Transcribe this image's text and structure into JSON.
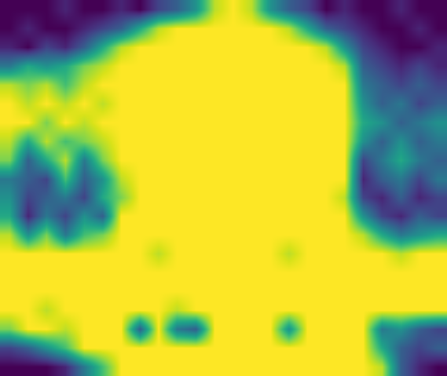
{
  "chart_data": {
    "type": "heatmap",
    "tick_labels": false,
    "grid": false,
    "color": "viridis",
    "zlim": [
      0,
      1
    ],
    "cells": [
      [
        0,
        0,
        0,
        0.1,
        0,
        0,
        0.1,
        0,
        0.2,
        0.3,
        0.5,
        0.9,
        1,
        0.9,
        0.5,
        0.3,
        0.2,
        0,
        0.1,
        0,
        0,
        0.1,
        0,
        0
      ],
      [
        0,
        0.1,
        0,
        0,
        0.1,
        0.2,
        0.3,
        0.6,
        0.9,
        1,
        1,
        1,
        1,
        1,
        1,
        0.9,
        0.6,
        0.3,
        0.2,
        0.1,
        0,
        0,
        0.1,
        0
      ],
      [
        0.1,
        0,
        0.2,
        0.1,
        0.3,
        0.6,
        0.9,
        1,
        1,
        1,
        1,
        1,
        1,
        1,
        1,
        1,
        1,
        0.9,
        0.5,
        0.2,
        0.1,
        0,
        0,
        0.1
      ],
      [
        0.4,
        0.6,
        0.5,
        0.6,
        0.8,
        0.9,
        1,
        1,
        1,
        1,
        1,
        1,
        1,
        1,
        1,
        1,
        1,
        1,
        0.9,
        0.3,
        0.2,
        0.1,
        0.2,
        0.1
      ],
      [
        0.9,
        0.8,
        0.9,
        0.7,
        0.9,
        1,
        1,
        1,
        1,
        1,
        1,
        1,
        1,
        1,
        1,
        1,
        1,
        1,
        1,
        0.4,
        0.3,
        0.2,
        0.3,
        0.2
      ],
      [
        1,
        0.9,
        1,
        0.9,
        1,
        0.9,
        1,
        1,
        1,
        1,
        1,
        1,
        1,
        1,
        1,
        1,
        1,
        1,
        1,
        0.5,
        0.3,
        0.4,
        0.2,
        0.3
      ],
      [
        1,
        1,
        0.8,
        1,
        0.9,
        1,
        1,
        1,
        1,
        1,
        1,
        1,
        1,
        1,
        1,
        1,
        1,
        1,
        1,
        0.6,
        0.5,
        0.3,
        0.4,
        0.5
      ],
      [
        0.9,
        0.6,
        0.9,
        0.7,
        0.8,
        0.9,
        1,
        1,
        1,
        1,
        1,
        1,
        1,
        1,
        1,
        1,
        1,
        1,
        1,
        0.5,
        0.3,
        0.5,
        0.3,
        0.4
      ],
      [
        0.8,
        0.3,
        0.6,
        0.9,
        0.4,
        0.8,
        1,
        1,
        1,
        1,
        1,
        1,
        1,
        1,
        1,
        1,
        1,
        1,
        1,
        0.2,
        0.4,
        0.6,
        0.4,
        0.3
      ],
      [
        0.4,
        0.3,
        0.2,
        0.7,
        0.3,
        0.5,
        0.9,
        1,
        1,
        1,
        1,
        1,
        1,
        1,
        1,
        1,
        1,
        1,
        1,
        0.1,
        0.3,
        0.4,
        0.2,
        0.4
      ],
      [
        0.5,
        0.2,
        0.3,
        0.4,
        0.2,
        0.6,
        0.8,
        1,
        1,
        1,
        1,
        1,
        1,
        1,
        1,
        1,
        1,
        1,
        0.9,
        0.2,
        0.1,
        0.3,
        0.1,
        0.2
      ],
      [
        0.6,
        0.1,
        0.4,
        0.2,
        0.5,
        0.3,
        1,
        1,
        1,
        1,
        1,
        1,
        1,
        1,
        1,
        1,
        1,
        1,
        1,
        0.5,
        0.2,
        0.1,
        0.3,
        0.2
      ],
      [
        0.9,
        0.5,
        0.8,
        0.4,
        0.7,
        0.8,
        1,
        1,
        1,
        1,
        1,
        1,
        1,
        1,
        1,
        1,
        1,
        1,
        1,
        0.9,
        0.6,
        0.4,
        0.5,
        0.6
      ],
      [
        1,
        1,
        1,
        1,
        1,
        1,
        1,
        1,
        0.9,
        1,
        1,
        1,
        1,
        1,
        1,
        0.9,
        1,
        1,
        1,
        1,
        1,
        0.9,
        1,
        1
      ],
      [
        1,
        1,
        1,
        1,
        1,
        1,
        1,
        1,
        1,
        1,
        1,
        1,
        1,
        1,
        1,
        1,
        1,
        1,
        1,
        1,
        1,
        1,
        1,
        1
      ],
      [
        1,
        1,
        1,
        1,
        1,
        1,
        1,
        1,
        1,
        1,
        1,
        1,
        1,
        1,
        1,
        1,
        1,
        1,
        1,
        1,
        1,
        1,
        1,
        1
      ],
      [
        1,
        1,
        0.9,
        1,
        1,
        1,
        1,
        1,
        1,
        0.9,
        1,
        1,
        1,
        1,
        1,
        1,
        1,
        1,
        1,
        1,
        1,
        1,
        1,
        1
      ],
      [
        0.8,
        1,
        1,
        0.9,
        1,
        1,
        1,
        0.3,
        1,
        0.4,
        0.3,
        1,
        1,
        1,
        1,
        0.5,
        1,
        1,
        1,
        1,
        0.4,
        0.5,
        0.3,
        0.2
      ],
      [
        0.2,
        0.3,
        0.5,
        0.7,
        1,
        1,
        1,
        1,
        1,
        1,
        1,
        1,
        1,
        1,
        1,
        1,
        1,
        1,
        1,
        1,
        0.6,
        0.3,
        0.2,
        0.3
      ],
      [
        0,
        0,
        0,
        0.1,
        0.4,
        0.7,
        1,
        1,
        1,
        1,
        1,
        1,
        1,
        1,
        1,
        1,
        1,
        1,
        1,
        1,
        0.9,
        0.3,
        0.1,
        0
      ]
    ]
  }
}
